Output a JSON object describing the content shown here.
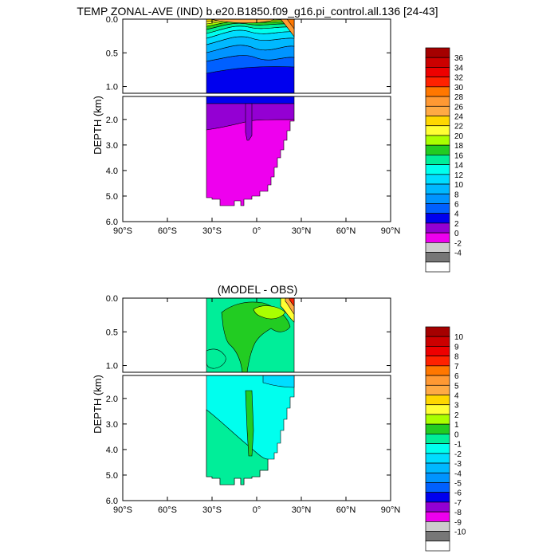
{
  "figure": {
    "title": "TEMP ZONAL-AVE (IND) b.e20.B1850.f09_g16.pi_control.all.136 [24-43]"
  },
  "chart_data": [
    {
      "type": "heatmap",
      "title": "TEMP ZONAL-AVE (IND) b.e20.B1850.f09_g16.pi_control.all.136 [24-43]",
      "xlabel": "",
      "ylabel": "DEPTH (km)",
      "x_ticks": [
        "90°S",
        "60°S",
        "30°S",
        "0°",
        "30°N",
        "60°N",
        "90°N"
      ],
      "x_tick_values": [
        -90,
        -60,
        -30,
        0,
        30,
        60,
        90
      ],
      "y_ticks_upper": [
        "0.0",
        "0.5",
        "1.0"
      ],
      "y_ticks_lower": [
        "2.0",
        "3.0",
        "4.0",
        "5.0",
        "6.0"
      ],
      "xlim": [
        -90,
        90
      ],
      "ylim_upper_km": [
        0,
        1.1
      ],
      "ylim_lower_km": [
        1.1,
        6.0
      ],
      "colorbar_labels": [
        "36",
        "34",
        "32",
        "30",
        "28",
        "26",
        "24",
        "22",
        "20",
        "18",
        "16",
        "14",
        "12",
        "10",
        "8",
        "6",
        "4",
        "2",
        "0",
        "-2",
        "-4"
      ],
      "colorbar_colors": [
        "#a50000",
        "#cc0000",
        "#ee0000",
        "#ff2200",
        "#ff7700",
        "#ff9933",
        "#ffaa44",
        "#ffd700",
        "#ffff33",
        "#aaff00",
        "#22cc22",
        "#00ee99",
        "#00ffee",
        "#00ddff",
        "#00b8ff",
        "#0094ff",
        "#0060ff",
        "#0000ee",
        "#9400d3",
        "#ee00ee",
        "#cccccc",
        "#777777",
        "#ffffff"
      ],
      "grid": false,
      "legend": "colorbar-right"
    },
    {
      "type": "heatmap",
      "title": "(MODEL - OBS)",
      "xlabel": "",
      "ylabel": "DEPTH (km)",
      "x_ticks": [
        "90°S",
        "60°S",
        "30°S",
        "0°",
        "30°N",
        "60°N",
        "90°N"
      ],
      "x_tick_values": [
        -90,
        -60,
        -30,
        0,
        30,
        60,
        90
      ],
      "y_ticks_upper": [
        "0.0",
        "0.5",
        "1.0"
      ],
      "y_ticks_lower": [
        "2.0",
        "3.0",
        "4.0",
        "5.0",
        "6.0"
      ],
      "xlim": [
        -90,
        90
      ],
      "ylim_upper_km": [
        0,
        1.1
      ],
      "ylim_lower_km": [
        1.1,
        6.0
      ],
      "colorbar_labels": [
        "10",
        "9",
        "8",
        "7",
        "6",
        "5",
        "4",
        "3",
        "2",
        "1",
        "0",
        "-1",
        "-2",
        "-3",
        "-4",
        "-5",
        "-6",
        "-7",
        "-8",
        "-9",
        "-10"
      ],
      "colorbar_colors": [
        "#a50000",
        "#cc0000",
        "#ee0000",
        "#ff2200",
        "#ff7700",
        "#ff9933",
        "#ffaa44",
        "#ffd700",
        "#ffff33",
        "#aaff00",
        "#22cc22",
        "#00ee99",
        "#00ffee",
        "#00ddff",
        "#00b8ff",
        "#0094ff",
        "#0060ff",
        "#0000ee",
        "#9400d3",
        "#ee00ee",
        "#cccccc",
        "#777777",
        "#ffffff"
      ],
      "grid": false,
      "legend": "colorbar-right"
    }
  ]
}
